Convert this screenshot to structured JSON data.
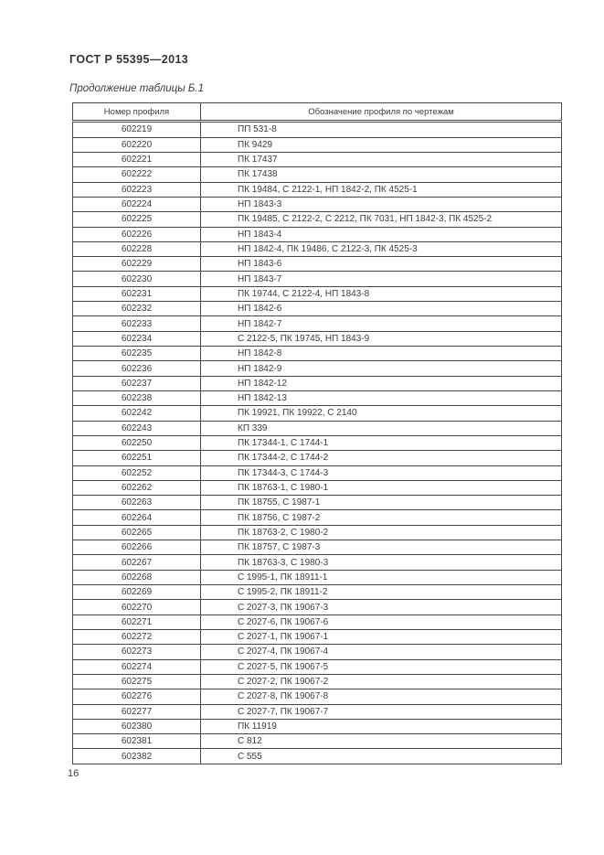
{
  "doc": {
    "title": "ГОСТ Р 55395—2013",
    "table_caption": "Продолжение таблицы Б.1",
    "page_number": "16"
  },
  "table": {
    "headers": {
      "number": "Номер профиля",
      "designation": "Обозначение профиля по чертежам"
    },
    "rows": [
      {
        "num": "602219",
        "des": "ПП 531-8"
      },
      {
        "num": "602220",
        "des": "ПК 9429"
      },
      {
        "num": "602221",
        "des": "ПК 17437"
      },
      {
        "num": "602222",
        "des": "ПК 17438"
      },
      {
        "num": "602223",
        "des": "ПК 19484, С 2122-1, НП 1842-2, ПК 4525-1"
      },
      {
        "num": "602224",
        "des": "НП 1843-3"
      },
      {
        "num": "602225",
        "des": "ПК 19485, С 2122-2, С 2212, ПК 7031, НП 1842-3, ПК 4525-2"
      },
      {
        "num": "602226",
        "des": "НП 1843-4"
      },
      {
        "num": "602228",
        "des": "НП 1842-4, ПК 19486, С 2122-3, ПК 4525-3"
      },
      {
        "num": "602229",
        "des": "НП 1843-6"
      },
      {
        "num": "602230",
        "des": "НП 1843-7"
      },
      {
        "num": "602231",
        "des": "ПК 19744, С 2122-4, НП 1843-8"
      },
      {
        "num": "602232",
        "des": "НП 1842-6"
      },
      {
        "num": "602233",
        "des": "НП 1842-7"
      },
      {
        "num": "602234",
        "des": "С 2122-5, ПК 19745, НП 1843-9"
      },
      {
        "num": "602235",
        "des": "НП 1842-8"
      },
      {
        "num": "602236",
        "des": "НП 1842-9"
      },
      {
        "num": "602237",
        "des": "НП 1842-12"
      },
      {
        "num": "602238",
        "des": "НП 1842-13"
      },
      {
        "num": "602242",
        "des": "ПК 19921, ПК 19922, С 2140"
      },
      {
        "num": "602243",
        "des": "КП 339"
      },
      {
        "num": "602250",
        "des": "ПК 17344-1, С 1744-1"
      },
      {
        "num": "602251",
        "des": "ПК 17344-2, С 1744-2"
      },
      {
        "num": "602252",
        "des": "ПК 17344-3, С 1744-3"
      },
      {
        "num": "602262",
        "des": "ПК 18763-1, С 1980-1"
      },
      {
        "num": "602263",
        "des": "ПК 18755, С 1987-1"
      },
      {
        "num": "602264",
        "des": "ПК 18756, С 1987-2"
      },
      {
        "num": "602265",
        "des": "ПК 18763-2, С 1980-2"
      },
      {
        "num": "602266",
        "des": "ПК 18757, С 1987-3"
      },
      {
        "num": "602267",
        "des": "ПК 18763-3, С 1980-3"
      },
      {
        "num": "602268",
        "des": "С 1995-1, ПК 18911-1"
      },
      {
        "num": "602269",
        "des": "С 1995-2, ПК 18911-2"
      },
      {
        "num": "602270",
        "des": "С 2027-3, ПК 19067-3"
      },
      {
        "num": "602271",
        "des": "С 2027-6, ПК 19067-6"
      },
      {
        "num": "602272",
        "des": "С 2027-1, ПК 19067-1"
      },
      {
        "num": "602273",
        "des": "С 2027-4, ПК 19067-4"
      },
      {
        "num": "602274",
        "des": "С 2027-5, ПК 19067-5"
      },
      {
        "num": "602275",
        "des": "С 2027-2, ПК 19067-2"
      },
      {
        "num": "602276",
        "des": "С 2027-8, ПК 19067-8"
      },
      {
        "num": "602277",
        "des": "С 2027-7, ПК 19067-7"
      },
      {
        "num": "602380",
        "des": "ПК 11919"
      },
      {
        "num": "602381",
        "des": "С 812"
      },
      {
        "num": "602382",
        "des": "С 555"
      }
    ]
  }
}
